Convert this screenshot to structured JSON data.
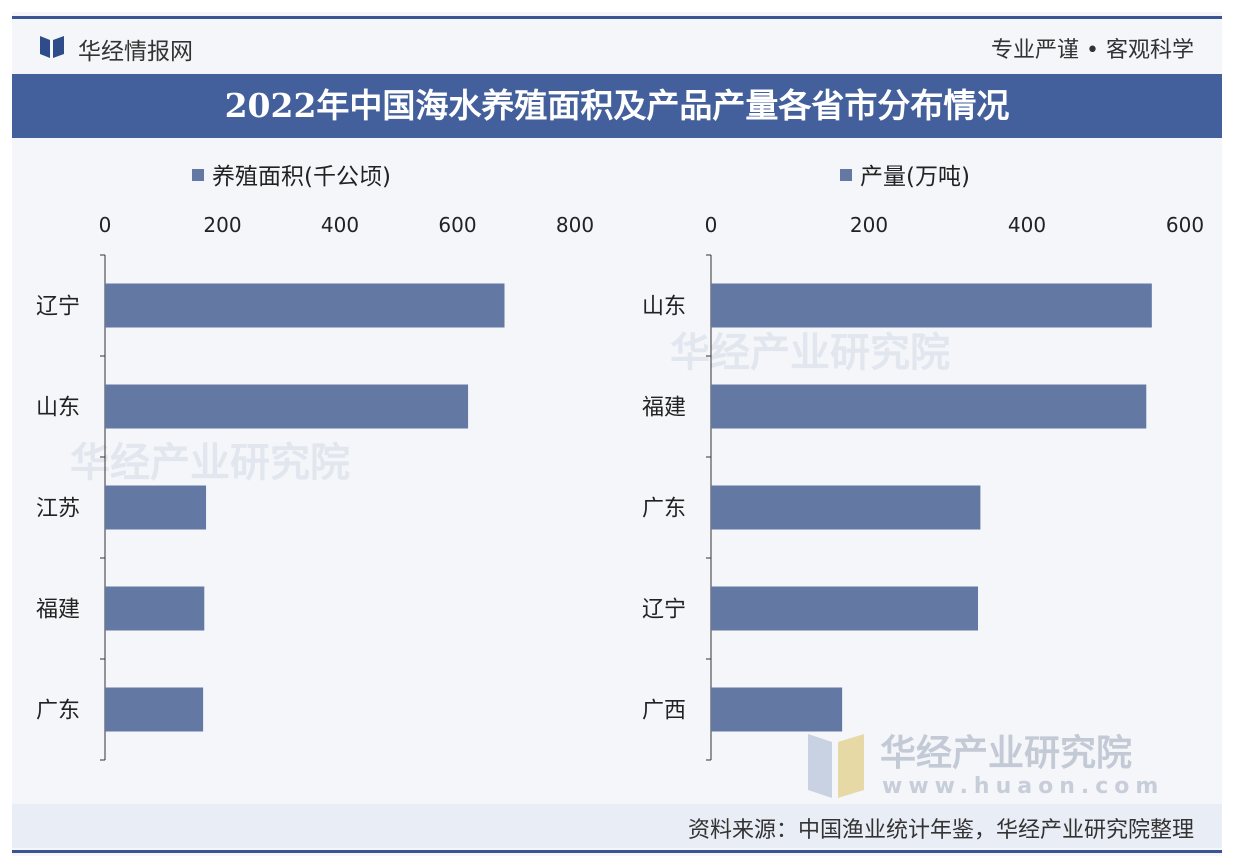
{
  "header": {
    "brand": "华经情报网",
    "slogan": "专业严谨 • 客观科学"
  },
  "title": "2022年中国海水养殖面积及产品产量各省市分布情况",
  "footer": {
    "source": "资料来源：中国渔业统计年鉴，华经产业研究院整理"
  },
  "watermark": {
    "brand": "华经产业研究院",
    "url": "www.huaon.com"
  },
  "colors": {
    "bar": "#6478a4",
    "band": "#44609c",
    "axis": "#333333"
  },
  "chart_data": [
    {
      "type": "bar",
      "orientation": "horizontal",
      "legend": "养殖面积(千公顷)",
      "categories": [
        "辽宁",
        "山东",
        "江苏",
        "福建",
        "广东"
      ],
      "values": [
        680,
        618,
        172,
        169,
        167
      ],
      "xlim": [
        0,
        800
      ],
      "xticks": [
        "0",
        "200",
        "400",
        "600",
        "800"
      ],
      "axis_position": "top",
      "grid": false
    },
    {
      "type": "bar",
      "orientation": "horizontal",
      "legend": "产量(万吨)",
      "categories": [
        "山东",
        "福建",
        "广东",
        "辽宁",
        "广西"
      ],
      "values": [
        558,
        551,
        341,
        338,
        166
      ],
      "xlim": [
        0,
        600
      ],
      "xticks": [
        "0",
        "200",
        "400",
        "600"
      ],
      "axis_position": "top",
      "grid": false
    }
  ]
}
